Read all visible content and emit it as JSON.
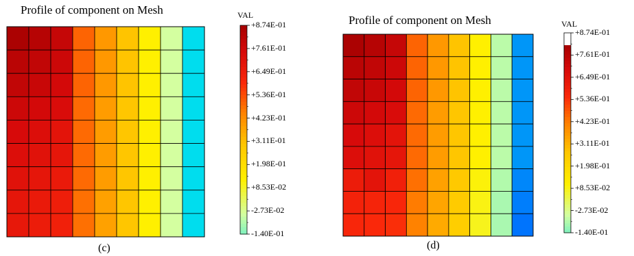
{
  "panels": [
    {
      "title": "Profile of component on Mesh",
      "label": "(c)",
      "legend_header": "VAL"
    },
    {
      "title": "Profile of component on Mesh",
      "label": "(d)",
      "legend_header": "VAL"
    }
  ],
  "chart_data": [
    {
      "type": "heatmap",
      "title": "Profile of component on Mesh",
      "colorbar_label": "VAL",
      "colorbar_ticks": [
        "+8.74E-01",
        "+7.61E-01",
        "+6.49E-01",
        "+5.36E-01",
        "+4.23E-01",
        "+3.11E-01",
        "+1.98E-01",
        "+8.53E-02",
        "-2.73E-02",
        "-1.40E-01"
      ],
      "colorbar_range": [
        -0.14,
        0.874
      ],
      "grid": "9x9",
      "values": [
        [
          0.87,
          0.84,
          0.8,
          0.5,
          0.4,
          0.3,
          0.12,
          -0.05,
          -0.3
        ],
        [
          0.83,
          0.81,
          0.78,
          0.5,
          0.4,
          0.3,
          0.12,
          -0.05,
          -0.3
        ],
        [
          0.81,
          0.79,
          0.76,
          0.5,
          0.4,
          0.3,
          0.12,
          -0.05,
          -0.3
        ],
        [
          0.78,
          0.76,
          0.74,
          0.49,
          0.39,
          0.29,
          0.12,
          -0.05,
          -0.3
        ],
        [
          0.75,
          0.73,
          0.7,
          0.49,
          0.39,
          0.29,
          0.12,
          -0.05,
          -0.3
        ],
        [
          0.73,
          0.71,
          0.69,
          0.49,
          0.39,
          0.29,
          0.12,
          -0.05,
          -0.3
        ],
        [
          0.71,
          0.69,
          0.67,
          0.49,
          0.39,
          0.29,
          0.12,
          -0.05,
          -0.3
        ],
        [
          0.69,
          0.67,
          0.65,
          0.48,
          0.38,
          0.29,
          0.12,
          -0.05,
          -0.3
        ],
        [
          0.68,
          0.66,
          0.64,
          0.48,
          0.38,
          0.29,
          0.12,
          -0.05,
          -0.3
        ]
      ]
    },
    {
      "type": "heatmap",
      "title": "Profile of component on Mesh",
      "colorbar_label": "VAL",
      "colorbar_ticks": [
        "+8.74E-01",
        "+7.61E-01",
        "+6.49E-01",
        "+5.36E-01",
        "+4.23E-01",
        "+3.11E-01",
        "+1.98E-01",
        "+8.53E-02",
        "-2.73E-02",
        "-1.40E-01"
      ],
      "colorbar_range": [
        -0.14,
        0.874
      ],
      "grid": "9x9",
      "values": [
        [
          0.87,
          0.84,
          0.8,
          0.5,
          0.4,
          0.3,
          0.12,
          -0.08,
          -0.45
        ],
        [
          0.83,
          0.81,
          0.78,
          0.5,
          0.4,
          0.3,
          0.12,
          -0.08,
          -0.45
        ],
        [
          0.81,
          0.79,
          0.76,
          0.5,
          0.4,
          0.3,
          0.12,
          -0.08,
          -0.45
        ],
        [
          0.78,
          0.76,
          0.74,
          0.49,
          0.39,
          0.29,
          0.12,
          -0.08,
          -0.45
        ],
        [
          0.75,
          0.73,
          0.7,
          0.49,
          0.39,
          0.29,
          0.12,
          -0.08,
          -0.45
        ],
        [
          0.73,
          0.71,
          0.69,
          0.49,
          0.39,
          0.29,
          0.12,
          -0.08,
          -0.45
        ],
        [
          0.66,
          0.7,
          0.64,
          0.48,
          0.38,
          0.28,
          0.11,
          -0.09,
          -0.48
        ],
        [
          0.63,
          0.62,
          0.61,
          0.46,
          0.37,
          0.27,
          0.1,
          -0.1,
          -0.5
        ],
        [
          0.61,
          0.6,
          0.59,
          0.45,
          0.36,
          0.26,
          0.09,
          -0.1,
          -0.52
        ]
      ]
    }
  ]
}
